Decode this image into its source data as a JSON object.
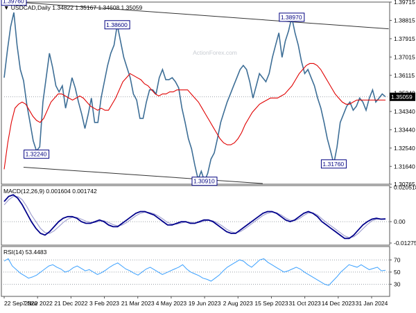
{
  "header": {
    "symbol": "USDCAD,Daily",
    "ohlc": "1.34822 1.35167 1.34608 1.35059",
    "macd_label": "MACD(12,26,9) 0.001604 0.001742",
    "rsi_label": "RSI(14) 53.4483",
    "watermark": "ActionForex.com"
  },
  "colors": {
    "price": "#3d6e96",
    "ma": "#e00000",
    "macd_main": "#00008b",
    "macd_signal": "#a0a0d0",
    "rsi": "#3aa0ff",
    "trendline": "#333333",
    "frame": "#555555",
    "grid_dotted": "#9aa0a8",
    "label_box": "#000080"
  },
  "chart_data": [
    {
      "type": "line",
      "name": "price",
      "x_ticks": [
        "22 Sep 2022",
        "7 Nov 2022",
        "21 Dec 2022",
        "3 Feb 2023",
        "21 Mar 2023",
        "4 May 2023",
        "19 Jun 2023",
        "2 Aug 2023",
        "15 Sep 2023",
        "31 Oct 2023",
        "14 Dec 2023",
        "31 Jan 2024"
      ],
      "y_ticks": [
        "1.39715",
        "1.38815",
        "1.37915",
        "1.37015",
        "1.36115",
        "1.35240",
        "1.34340",
        "1.33440",
        "1.32540",
        "1.31640",
        "1.30765"
      ],
      "ylim": [
        1.30765,
        1.39715
      ],
      "last_price": "1.35059",
      "series": [
        {
          "values": [
            1.36,
            1.3735,
            1.385,
            1.392,
            1.376,
            1.364,
            1.3585,
            1.347,
            1.338,
            1.329,
            1.324,
            1.326,
            1.348,
            1.36,
            1.372,
            1.365,
            1.356,
            1.353,
            1.356,
            1.345,
            1.352,
            1.36,
            1.355,
            1.348,
            1.342,
            1.335,
            1.342,
            1.35,
            1.338,
            1.338,
            1.35,
            1.358,
            1.366,
            1.372,
            1.376,
            1.386,
            1.378,
            1.37,
            1.365,
            1.36,
            1.352,
            1.349,
            1.34,
            1.34,
            1.348,
            1.354,
            1.354,
            1.352,
            1.36,
            1.364,
            1.359,
            1.359,
            1.36,
            1.358,
            1.355,
            1.345,
            1.338,
            1.33,
            1.325,
            1.317,
            1.31,
            1.314,
            1.3091,
            1.313,
            1.32,
            1.323,
            1.33,
            1.338,
            1.343,
            1.348,
            1.352,
            1.356,
            1.36,
            1.364,
            1.366,
            1.364,
            1.358,
            1.35,
            1.356,
            1.362,
            1.36,
            1.358,
            1.362,
            1.37,
            1.376,
            1.382,
            1.37,
            1.378,
            1.383,
            1.3897,
            1.382,
            1.376,
            1.368,
            1.362,
            1.364,
            1.36,
            1.356,
            1.35,
            1.345,
            1.338,
            1.33,
            1.324,
            1.3176,
            1.326,
            1.338,
            1.342,
            1.346,
            1.348,
            1.344,
            1.346,
            1.35,
            1.348,
            1.344,
            1.35,
            1.354,
            1.348,
            1.35,
            1.352,
            1.3506
          ],
          "name": ""
        },
        {
          "values": [
            1.315,
            1.328,
            1.338,
            1.345,
            1.347,
            1.348,
            1.347,
            1.344,
            1.341,
            1.339,
            1.338,
            1.34,
            1.344,
            1.348,
            1.35,
            1.352,
            1.352,
            1.351,
            1.35,
            1.349,
            1.35,
            1.351,
            1.35,
            1.348,
            1.346,
            1.345,
            1.344,
            1.345,
            1.344,
            1.344,
            1.347,
            1.35,
            1.354,
            1.358,
            1.36,
            1.362,
            1.361,
            1.36,
            1.359,
            1.357,
            1.356,
            1.354,
            1.352,
            1.351,
            1.352,
            1.352,
            1.353,
            1.353,
            1.354,
            1.354,
            1.354,
            1.354,
            1.352,
            1.35,
            1.348,
            1.345,
            1.342,
            1.339,
            1.336,
            1.333,
            1.33,
            1.328,
            1.327,
            1.327,
            1.328,
            1.33,
            1.333,
            1.337,
            1.34,
            1.343,
            1.345,
            1.347,
            1.348,
            1.349,
            1.35,
            1.35,
            1.35,
            1.351,
            1.352,
            1.354,
            1.356,
            1.359,
            1.362,
            1.364,
            1.366,
            1.367,
            1.367,
            1.366,
            1.364,
            1.361,
            1.358,
            1.355,
            1.352,
            1.35,
            1.348,
            1.347,
            1.347,
            1.348,
            1.349,
            1.349,
            1.349,
            1.349,
            1.349,
            1.349,
            1.349,
            1.349,
            1.349
          ],
          "name": ""
        }
      ],
      "annotations": [
        {
          "text": "1.39760",
          "x": 0,
          "y": 1.3976
        },
        {
          "text": "1.38600",
          "x": 35,
          "y": 1.386
        },
        {
          "text": "1.32240",
          "x": 10,
          "y": 1.3224
        },
        {
          "text": "1.30910",
          "x": 62,
          "y": 1.3091
        },
        {
          "text": "1.38970",
          "x": 89,
          "y": 1.3897
        },
        {
          "text": "1.31760",
          "x": 102,
          "y": 1.3176
        }
      ],
      "trendlines": [
        {
          "x": [
            0,
            119
          ],
          "y": [
            1.3976,
            1.384
          ]
        },
        {
          "x": [
            6,
            80
          ],
          "y": [
            1.316,
            1.308
          ]
        },
        {
          "x": [
            0,
            119
          ],
          "y": [
            1.3506,
            1.3506
          ]
        }
      ]
    },
    {
      "type": "line",
      "name": "MACD(12,26,9)",
      "y_ticks": [
        "0.020518",
        "0.00",
        "-0.012755"
      ],
      "ylim": [
        -0.014,
        0.0215
      ],
      "series": [
        {
          "values": [
            0.012,
            0.015,
            0.016,
            0.014,
            0.01,
            0.005,
            0.0,
            -0.004,
            -0.007,
            -0.008,
            -0.006,
            -0.003,
            0.0,
            0.002,
            0.003,
            0.003,
            0.002,
            0.0,
            -0.001,
            -0.001,
            0.0,
            0.001,
            0.0,
            -0.002,
            -0.003,
            -0.003,
            -0.001,
            0.001,
            0.003,
            0.005,
            0.006,
            0.006,
            0.005,
            0.004,
            0.002,
            0.0,
            -0.002,
            -0.002,
            -0.001,
            0.0,
            0.0,
            -0.001,
            -0.001,
            0.0,
            0.001,
            0.001,
            0.0,
            -0.002,
            -0.004,
            -0.006,
            -0.007,
            -0.007,
            -0.005,
            -0.003,
            -0.001,
            0.001,
            0.003,
            0.005,
            0.006,
            0.006,
            0.005,
            0.003,
            0.001,
            0.0,
            0.001,
            0.003,
            0.005,
            0.006,
            0.005,
            0.003,
            0.0,
            -0.002,
            -0.004,
            -0.006,
            -0.008,
            -0.01,
            -0.01,
            -0.008,
            -0.005,
            -0.002,
            0.0,
            0.0015,
            0.002,
            0.0015,
            0.0016
          ],
          "name": ""
        },
        {
          "values": [
            0.01,
            0.013,
            0.015,
            0.015,
            0.013,
            0.009,
            0.004,
            0.0,
            -0.004,
            -0.0065,
            -0.007,
            -0.0055,
            -0.003,
            -0.0005,
            0.0015,
            0.0025,
            0.0025,
            0.0015,
            0.0003,
            -0.0005,
            -0.0005,
            0.0003,
            0.0005,
            -0.0005,
            -0.0018,
            -0.0025,
            -0.002,
            -0.0005,
            0.0015,
            0.0035,
            0.005,
            0.0057,
            0.0055,
            0.0047,
            0.0033,
            0.0015,
            -0.0005,
            -0.0015,
            -0.0015,
            -0.0008,
            -0.0003,
            -0.0005,
            -0.0008,
            -0.0005,
            0.0003,
            0.0008,
            0.0005,
            -0.0008,
            -0.0025,
            -0.0045,
            -0.006,
            -0.0067,
            -0.006,
            -0.0043,
            -0.0023,
            -0.0003,
            0.0017,
            0.0037,
            0.005,
            0.0057,
            0.0053,
            0.004,
            0.0022,
            0.0008,
            0.0006,
            0.0018,
            0.0037,
            0.0052,
            0.0053,
            0.004,
            0.0017,
            -0.0005,
            -0.0025,
            -0.0045,
            -0.0065,
            -0.0085,
            -0.0095,
            -0.009,
            -0.007,
            -0.0043,
            -0.0017,
            0.0005,
            0.0015,
            0.0017,
            0.0017
          ],
          "name": ""
        }
      ]
    },
    {
      "type": "line",
      "name": "RSI(14)",
      "y_ticks": [
        "70",
        "50",
        "30"
      ],
      "ylim": [
        10,
        92
      ],
      "series": [
        {
          "values": [
            68,
            72,
            60,
            54,
            48,
            44,
            40,
            42,
            45,
            50,
            55,
            60,
            62,
            58,
            55,
            50,
            52,
            57,
            60,
            56,
            52,
            54,
            50,
            46,
            49,
            53,
            58,
            62,
            65,
            60,
            55,
            52,
            48,
            45,
            50,
            55,
            58,
            54,
            50,
            46,
            49,
            52,
            55,
            58,
            62,
            55,
            50,
            47,
            44,
            40,
            38,
            35,
            40,
            45,
            52,
            58,
            62,
            66,
            70,
            68,
            62,
            58,
            64,
            70,
            72,
            66,
            62,
            58,
            54,
            50,
            52,
            55,
            58,
            55,
            50,
            46,
            42,
            38,
            34,
            30,
            28,
            35,
            42,
            50,
            56,
            62,
            60,
            58,
            62,
            58,
            54,
            56,
            58,
            52,
            53
          ],
          "name": ""
        }
      ]
    }
  ]
}
